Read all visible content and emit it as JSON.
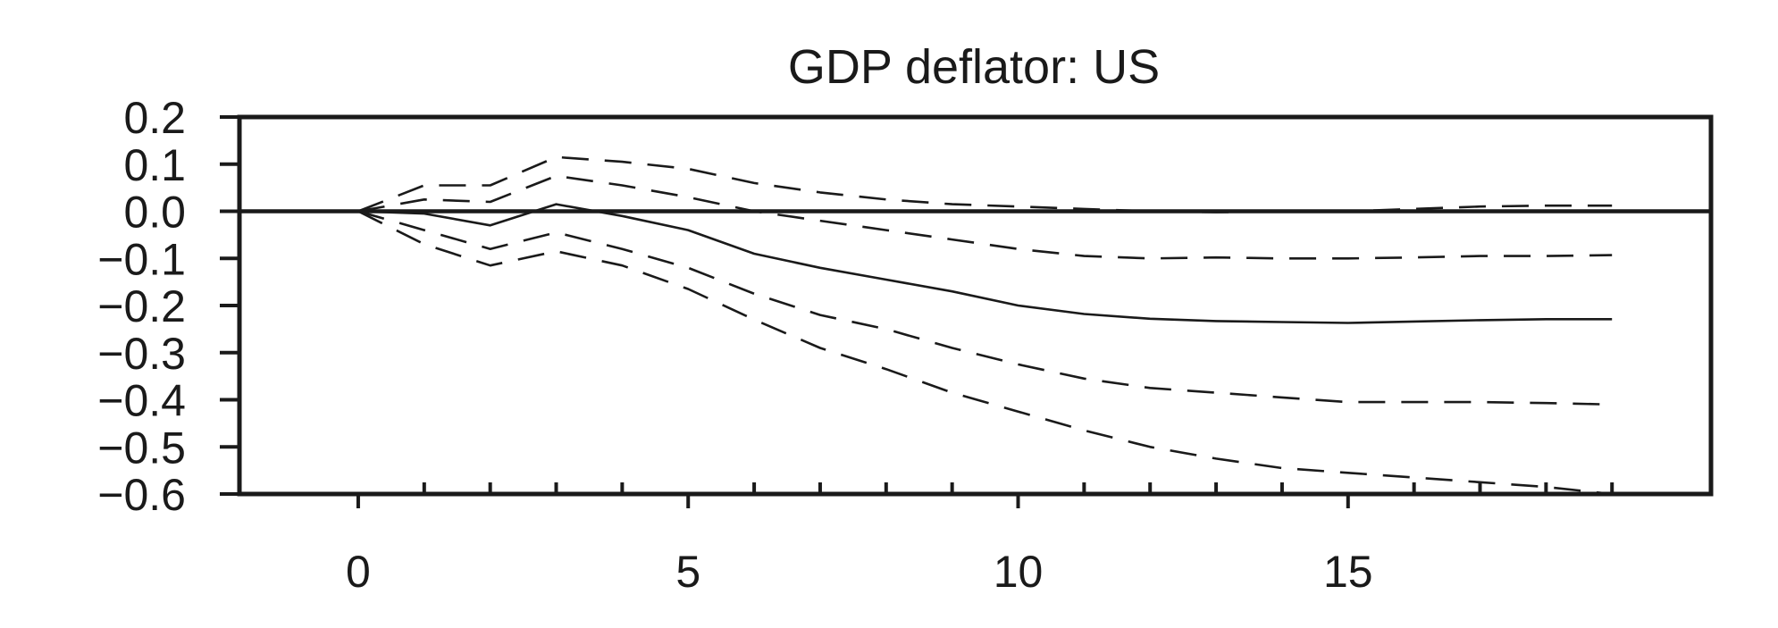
{
  "chart_data": {
    "type": "line",
    "title": "GDP deflator: US",
    "xlabel": "",
    "ylabel": "",
    "xlim": [
      -1.8,
      20.5
    ],
    "ylim": [
      -0.6,
      0.2
    ],
    "x_ticks": [
      0,
      5,
      10,
      15
    ],
    "x_minor_ticks": [
      1,
      2,
      3,
      4,
      6,
      7,
      8,
      9,
      11,
      12,
      13,
      14,
      16,
      17,
      18,
      19
    ],
    "y_ticks": [
      0.2,
      0.1,
      0.0,
      -0.1,
      -0.2,
      -0.3,
      -0.4,
      -0.5,
      -0.6
    ],
    "y_tick_labels": [
      "0.2",
      "0.1",
      "0.0",
      "−0.1",
      "−0.2",
      "−0.3",
      "−0.4",
      "−0.5",
      "−0.6"
    ],
    "zero_line": true,
    "grid": false,
    "colors": {
      "line": "#1a1a1a",
      "axes": "#1a1a1a",
      "background": "#ffffff"
    },
    "x": [
      0,
      1,
      2,
      3,
      4,
      5,
      6,
      7,
      8,
      9,
      10,
      11,
      12,
      13,
      14,
      15,
      16,
      17,
      18,
      19
    ],
    "series": [
      {
        "style": "solid",
        "values": [
          0.0,
          -0.005,
          -0.03,
          0.015,
          -0.01,
          -0.04,
          -0.09,
          -0.12,
          -0.145,
          -0.17,
          -0.2,
          -0.218,
          -0.228,
          -0.233,
          -0.235,
          -0.237,
          -0.234,
          -0.231,
          -0.229,
          -0.229
        ]
      },
      {
        "style": "dashed",
        "values": [
          0.0,
          0.025,
          0.02,
          0.075,
          0.055,
          0.03,
          0.0,
          -0.02,
          -0.04,
          -0.06,
          -0.08,
          -0.095,
          -0.1,
          -0.098,
          -0.1,
          -0.1,
          -0.098,
          -0.095,
          -0.095,
          -0.093
        ]
      },
      {
        "style": "dashed",
        "values": [
          0.0,
          -0.04,
          -0.08,
          -0.045,
          -0.08,
          -0.12,
          -0.175,
          -0.22,
          -0.25,
          -0.29,
          -0.325,
          -0.355,
          -0.375,
          -0.385,
          -0.395,
          -0.405,
          -0.405,
          -0.405,
          -0.407,
          -0.41
        ]
      },
      {
        "style": "dashed",
        "values": [
          0.0,
          0.055,
          0.055,
          0.115,
          0.105,
          0.09,
          0.06,
          0.04,
          0.025,
          0.015,
          0.01,
          0.005,
          0.0,
          -0.002,
          0.0,
          0.0,
          0.005,
          0.01,
          0.012,
          0.012
        ]
      },
      {
        "style": "dashed",
        "values": [
          0.0,
          -0.07,
          -0.115,
          -0.085,
          -0.115,
          -0.165,
          -0.23,
          -0.29,
          -0.335,
          -0.385,
          -0.425,
          -0.465,
          -0.5,
          -0.525,
          -0.545,
          -0.555,
          -0.565,
          -0.575,
          -0.585,
          -0.6
        ]
      }
    ]
  }
}
